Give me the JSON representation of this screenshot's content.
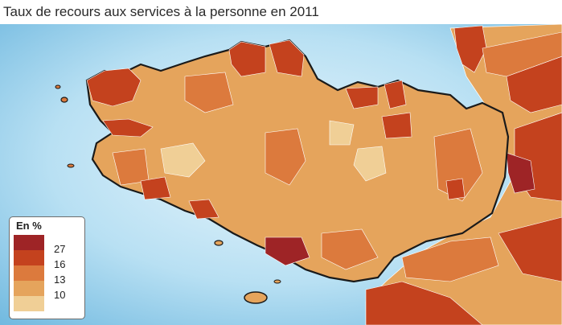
{
  "title": "Taux de recours aux services à la personne en 2011",
  "legend": {
    "title": "En %",
    "classes": [
      {
        "color": "#9e2426"
      },
      {
        "color": "#c4421e"
      },
      {
        "color": "#dc7a3d"
      },
      {
        "color": "#e5a45c"
      },
      {
        "color": "#f0cf96"
      }
    ],
    "breaks": [
      "27",
      "16",
      "13",
      "10"
    ]
  },
  "map": {
    "sea_color": "#8ec9e6",
    "land_outside_color": "#f0ece4",
    "region_border_color": "#1a1a1a"
  }
}
